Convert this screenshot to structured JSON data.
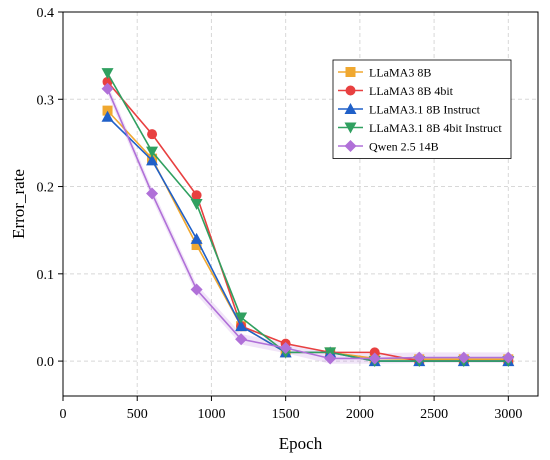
{
  "chart_data": {
    "type": "line",
    "title": "",
    "xlabel": "Epoch",
    "ylabel": "Error_rate",
    "xlim": [
      0,
      3200
    ],
    "ylim": [
      -0.04,
      0.4
    ],
    "xticks": [
      0,
      500,
      1000,
      1500,
      2000,
      2500,
      3000
    ],
    "yticks": [
      0.0,
      0.1,
      0.2,
      0.3,
      0.4
    ],
    "ytick_labels": [
      "0.0",
      "0.1",
      "0.2",
      "0.3",
      "0.4"
    ],
    "grid": true,
    "legend_position": "top-right",
    "x": [
      300,
      600,
      900,
      1200,
      1500,
      1800,
      2100,
      2400,
      2700,
      3000
    ],
    "series": [
      {
        "name": "LLaMA3 8B",
        "color": "#F0A830",
        "marker": "square",
        "values": [
          0.287,
          0.232,
          0.133,
          0.04,
          0.01,
          0.01,
          0.003,
          0.002,
          0.002,
          0.002
        ]
      },
      {
        "name": "LLaMA3 8B 4bit",
        "color": "#E84040",
        "marker": "circle",
        "values": [
          0.32,
          0.26,
          0.19,
          0.04,
          0.02,
          0.01,
          0.01,
          0.0,
          0.0,
          0.0
        ]
      },
      {
        "name": "LLaMA3.1 8B Instruct",
        "color": "#2060C8",
        "marker": "triangle-up",
        "values": [
          0.28,
          0.23,
          0.14,
          0.04,
          0.01,
          0.01,
          0.0,
          0.0,
          0.0,
          0.0
        ]
      },
      {
        "name": "LLaMA3.1 8B 4bit Instruct",
        "color": "#30A060",
        "marker": "triangle-down",
        "values": [
          0.33,
          0.24,
          0.18,
          0.05,
          0.01,
          0.01,
          0.0,
          0.0,
          0.0,
          0.0
        ]
      },
      {
        "name": "Qwen 2.5 14B",
        "color": "#B070D8",
        "marker": "diamond",
        "values": [
          0.312,
          0.192,
          0.082,
          0.025,
          0.015,
          0.003,
          0.003,
          0.004,
          0.004,
          0.004
        ]
      }
    ]
  }
}
